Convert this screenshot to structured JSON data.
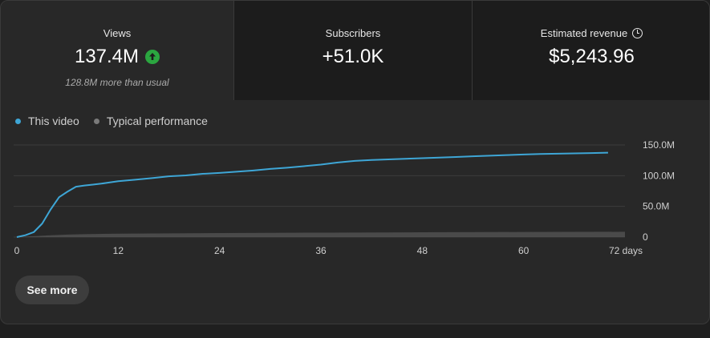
{
  "metrics": {
    "views": {
      "label": "Views",
      "value": "137.4M",
      "sub": "128.8M more than usual",
      "icon": "arrow-up-circle-icon"
    },
    "subscribers": {
      "label": "Subscribers",
      "value": "+51.0K"
    },
    "revenue": {
      "label": "Estimated revenue",
      "value": "$5,243.96",
      "icon": "clock-icon"
    }
  },
  "legend": [
    {
      "label": "This video",
      "color": "#3ea6d6"
    },
    {
      "label": "Typical performance",
      "color": "#7a7a7a"
    }
  ],
  "button": {
    "see_more": "See more"
  },
  "chart_data": {
    "type": "line",
    "x_ticks": [
      0,
      12,
      24,
      36,
      48,
      60,
      72
    ],
    "x_tick_labels": [
      "0",
      "12",
      "24",
      "36",
      "48",
      "60",
      "72 days"
    ],
    "y_ticks": [
      0,
      50,
      100,
      150
    ],
    "y_tick_labels": [
      "0",
      "50.0M",
      "100.0M",
      "150.0M"
    ],
    "xlim": [
      0,
      72
    ],
    "ylim": [
      0,
      150
    ],
    "grid": true,
    "legend_position": "top-left",
    "series": [
      {
        "name": "This video",
        "color": "#3ea6d6",
        "x": [
          0,
          1,
          2,
          3,
          4,
          5,
          6,
          7,
          8,
          9,
          10,
          11,
          12,
          14,
          16,
          18,
          20,
          22,
          24,
          26,
          28,
          30,
          32,
          34,
          36,
          38,
          40,
          42,
          44,
          46,
          48,
          50,
          52,
          54,
          56,
          58,
          60,
          62,
          64,
          66,
          68,
          70
        ],
        "values": [
          0,
          3,
          8,
          22,
          45,
          65,
          74,
          82,
          84,
          85.5,
          87,
          89,
          91,
          93.5,
          96,
          99,
          100.5,
          103,
          104.5,
          106.5,
          108.5,
          111,
          113,
          115.5,
          118,
          121.5,
          124,
          125.5,
          126.5,
          127.5,
          128.5,
          129.5,
          130.5,
          131.5,
          132.5,
          133.5,
          134.5,
          135.3,
          135.8,
          136.3,
          136.8,
          137.4
        ]
      },
      {
        "name": "Typical performance",
        "color": "#555555",
        "band": true,
        "x": [
          0,
          2,
          4,
          6,
          8,
          12,
          24,
          36,
          48,
          60,
          72
        ],
        "low": [
          0,
          0,
          0,
          0,
          0,
          0,
          0,
          0,
          0,
          0,
          0
        ],
        "high": [
          0,
          1.5,
          3,
          4,
          4.8,
          5.5,
          6.5,
          7.2,
          7.8,
          8.3,
          8.6
        ]
      }
    ]
  }
}
